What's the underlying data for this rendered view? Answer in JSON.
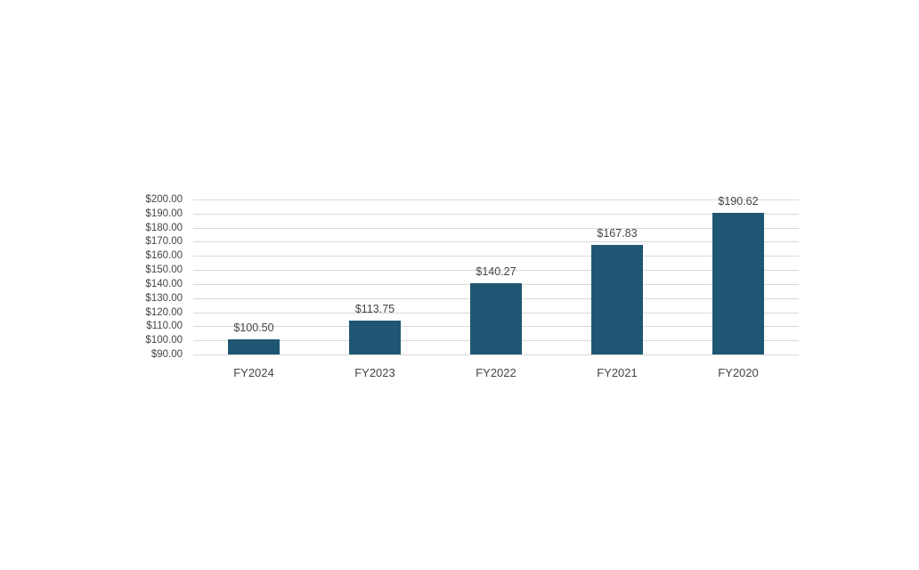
{
  "chart_data": {
    "type": "bar",
    "title": "",
    "xlabel": "",
    "ylabel": "",
    "categories": [
      "FY2024",
      "FY2023",
      "FY2022",
      "FY2021",
      "FY2020"
    ],
    "values": [
      100.5,
      113.75,
      140.27,
      167.83,
      190.62
    ],
    "data_labels": [
      "$100.50",
      "$113.75",
      "$140.27",
      "$167.83",
      "$190.62"
    ],
    "ylim": [
      90,
      200
    ],
    "ytick_step": 10,
    "ytick_labels_top_down": [
      "$200.00",
      "$190.00",
      "$180.00",
      "$170.00",
      "$160.00",
      "$150.00",
      "$140.00",
      "$130.00",
      "$120.00",
      "$110.00",
      "$100.00",
      "$90.00"
    ],
    "grid": true,
    "legend": "none",
    "bar_color": "#1F5673",
    "gridline_color": "#D9D9D9",
    "text_color": "#444444",
    "background": "#FFFFFF"
  }
}
